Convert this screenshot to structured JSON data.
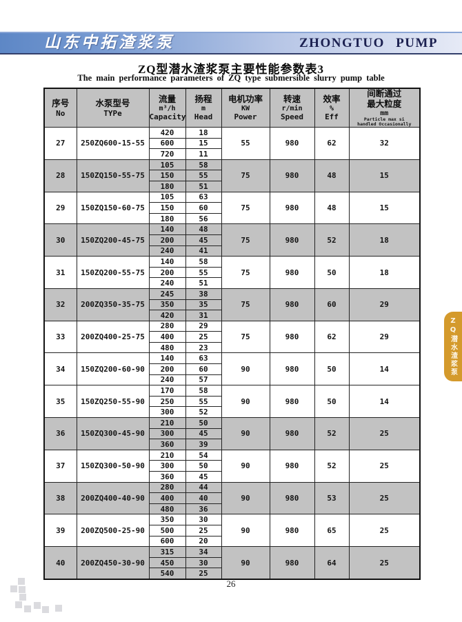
{
  "colors": {
    "banner_blue": "#5d87c6",
    "banner_navy_text": "#1b2050",
    "row_gray": "#c2c2c2",
    "tab_orange": "#d49a2c"
  },
  "banner": {
    "logo_cn": "山东中拓渣浆泵",
    "logo_en": "ZHONGTUO  PUMP"
  },
  "title": {
    "cn": "ZQ型潜水渣浆泵主要性能参数表3",
    "en": "The main performance parameters of ZQ type submersible slurry pump table"
  },
  "side_tab": {
    "label": "ZQ潜水渣浆泵"
  },
  "footer": {
    "page_number": "26"
  },
  "table": {
    "headers": [
      {
        "cn": [
          "序号"
        ],
        "unit": "",
        "en": [
          "No"
        ]
      },
      {
        "cn": [
          "水泵型号"
        ],
        "unit": "",
        "en": [
          "TYPe"
        ]
      },
      {
        "cn": [
          "流量"
        ],
        "unit": "m³/h",
        "en": [
          "Capacity"
        ]
      },
      {
        "cn": [
          "扬程"
        ],
        "unit": "m",
        "en": [
          "Head"
        ]
      },
      {
        "cn": [
          "电机功率"
        ],
        "unit": "KW",
        "en": [
          "Power"
        ]
      },
      {
        "cn": [
          "转速"
        ],
        "unit": "r/min",
        "en": [
          "Speed"
        ]
      },
      {
        "cn": [
          "效率"
        ],
        "unit": "%",
        "en": [
          "Eff"
        ]
      },
      {
        "cn": [
          "间断通过",
          "最大粒度"
        ],
        "unit": "mm",
        "en": [],
        "en_small": [
          "Particle max si",
          "handled Occasionally"
        ]
      }
    ],
    "rows": [
      {
        "no": "27",
        "type": "250ZQ600-15-55",
        "flows": [
          {
            "capacity": "420",
            "head": "18"
          },
          {
            "capacity": "600",
            "head": "15"
          },
          {
            "capacity": "720",
            "head": "11"
          }
        ],
        "power": "55",
        "speed": "980",
        "eff": "62",
        "particle": "32",
        "shaded": false
      },
      {
        "no": "28",
        "type": "150ZQ150-55-75",
        "flows": [
          {
            "capacity": "105",
            "head": "58"
          },
          {
            "capacity": "150",
            "head": "55"
          },
          {
            "capacity": "180",
            "head": "51"
          }
        ],
        "power": "75",
        "speed": "980",
        "eff": "48",
        "particle": "15",
        "shaded": true
      },
      {
        "no": "29",
        "type": "150ZQ150-60-75",
        "flows": [
          {
            "capacity": "105",
            "head": "63"
          },
          {
            "capacity": "150",
            "head": "60"
          },
          {
            "capacity": "180",
            "head": "56"
          }
        ],
        "power": "75",
        "speed": "980",
        "eff": "48",
        "particle": "15",
        "shaded": false
      },
      {
        "no": "30",
        "type": "150ZQ200-45-75",
        "flows": [
          {
            "capacity": "140",
            "head": "48"
          },
          {
            "capacity": "200",
            "head": "45"
          },
          {
            "capacity": "240",
            "head": "41"
          }
        ],
        "power": "75",
        "speed": "980",
        "eff": "52",
        "particle": "18",
        "shaded": true
      },
      {
        "no": "31",
        "type": "150ZQ200-55-75",
        "flows": [
          {
            "capacity": "140",
            "head": "58"
          },
          {
            "capacity": "200",
            "head": "55"
          },
          {
            "capacity": "240",
            "head": "51"
          }
        ],
        "power": "75",
        "speed": "980",
        "eff": "50",
        "particle": "18",
        "shaded": false
      },
      {
        "no": "32",
        "type": "200ZQ350-35-75",
        "flows": [
          {
            "capacity": "245",
            "head": "38"
          },
          {
            "capacity": "350",
            "head": "35"
          },
          {
            "capacity": "420",
            "head": "31"
          }
        ],
        "power": "75",
        "speed": "980",
        "eff": "60",
        "particle": "29",
        "shaded": true
      },
      {
        "no": "33",
        "type": "200ZQ400-25-75",
        "flows": [
          {
            "capacity": "280",
            "head": "29"
          },
          {
            "capacity": "400",
            "head": "25"
          },
          {
            "capacity": "480",
            "head": "23"
          }
        ],
        "power": "75",
        "speed": "980",
        "eff": "62",
        "particle": "29",
        "shaded": false
      },
      {
        "no": "34",
        "type": "150ZQ200-60-90",
        "flows": [
          {
            "capacity": "140",
            "head": "63"
          },
          {
            "capacity": "200",
            "head": "60"
          },
          {
            "capacity": "240",
            "head": "57"
          }
        ],
        "power": "90",
        "speed": "980",
        "eff": "50",
        "particle": "14",
        "shaded": false
      },
      {
        "no": "35",
        "type": "150ZQ250-55-90",
        "flows": [
          {
            "capacity": "170",
            "head": "58"
          },
          {
            "capacity": "250",
            "head": "55"
          },
          {
            "capacity": "300",
            "head": "52"
          }
        ],
        "power": "90",
        "speed": "980",
        "eff": "50",
        "particle": "14",
        "shaded": false
      },
      {
        "no": "36",
        "type": "150ZQ300-45-90",
        "flows": [
          {
            "capacity": "210",
            "head": "50"
          },
          {
            "capacity": "300",
            "head": "45"
          },
          {
            "capacity": "360",
            "head": "39"
          }
        ],
        "power": "90",
        "speed": "980",
        "eff": "52",
        "particle": "25",
        "shaded": true
      },
      {
        "no": "37",
        "type": "150ZQ300-50-90",
        "flows": [
          {
            "capacity": "210",
            "head": "54"
          },
          {
            "capacity": "300",
            "head": "50"
          },
          {
            "capacity": "360",
            "head": "45"
          }
        ],
        "power": "90",
        "speed": "980",
        "eff": "52",
        "particle": "25",
        "shaded": false
      },
      {
        "no": "38",
        "type": "200ZQ400-40-90",
        "flows": [
          {
            "capacity": "280",
            "head": "44"
          },
          {
            "capacity": "400",
            "head": "40"
          },
          {
            "capacity": "480",
            "head": "36"
          }
        ],
        "power": "90",
        "speed": "980",
        "eff": "53",
        "particle": "25",
        "shaded": true
      },
      {
        "no": "39",
        "type": "200ZQ500-25-90",
        "flows": [
          {
            "capacity": "350",
            "head": "30"
          },
          {
            "capacity": "500",
            "head": "25"
          },
          {
            "capacity": "600",
            "head": "20"
          }
        ],
        "power": "90",
        "speed": "980",
        "eff": "65",
        "particle": "25",
        "shaded": false
      },
      {
        "no": "40",
        "type": "200ZQ450-30-90",
        "flows": [
          {
            "capacity": "315",
            "head": "34"
          },
          {
            "capacity": "450",
            "head": "30"
          },
          {
            "capacity": "540",
            "head": "25"
          }
        ],
        "power": "90",
        "speed": "980",
        "eff": "64",
        "particle": "25",
        "shaded": true
      }
    ]
  }
}
